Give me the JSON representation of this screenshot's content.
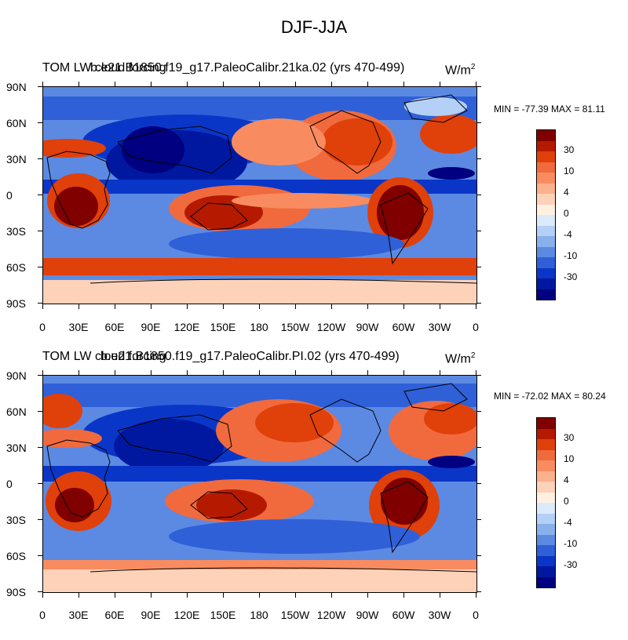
{
  "figure": {
    "title": "DJF-JJA"
  },
  "panels": [
    {
      "title_text": "TOM LW cloud forcing",
      "case_text": "b.e21.B1850.f19_g17.PaleoCalibr.21ka.02 (yrs 470-499)",
      "units": "W/m",
      "units_sup": "2",
      "minmax": "MIN = -77.39 MAX =  81.11"
    },
    {
      "title_text": "TOM LW cloud forcing",
      "case_text": "b.e21.B1850.f19_g17.PaleoCalibr.PI.02 (yrs 470-499)",
      "units": "W/m",
      "units_sup": "2",
      "minmax": "MIN = -72.02 MAX =  80.24"
    }
  ],
  "axes": {
    "lat_labels": [
      "90N",
      "60N",
      "30N",
      "0",
      "30S",
      "60S",
      "90S"
    ],
    "lon_labels": [
      "0",
      "30E",
      "60E",
      "90E",
      "120E",
      "150E",
      "180",
      "150W",
      "120W",
      "90W",
      "60W",
      "30W",
      "0"
    ]
  },
  "colorbar": {
    "labels": [
      "30",
      "10",
      "4",
      "0",
      "-4",
      "-10",
      "-30"
    ],
    "colors": [
      "#800000",
      "#b51a00",
      "#e0400a",
      "#f06a3e",
      "#f88c60",
      "#fcb08c",
      "#fdd2b8",
      "#fff0e2",
      "#dcebfc",
      "#b4d0f6",
      "#88b0ec",
      "#5c8ae2",
      "#2f60d8",
      "#0a36c8",
      "#0018a0",
      "#000080"
    ]
  }
}
